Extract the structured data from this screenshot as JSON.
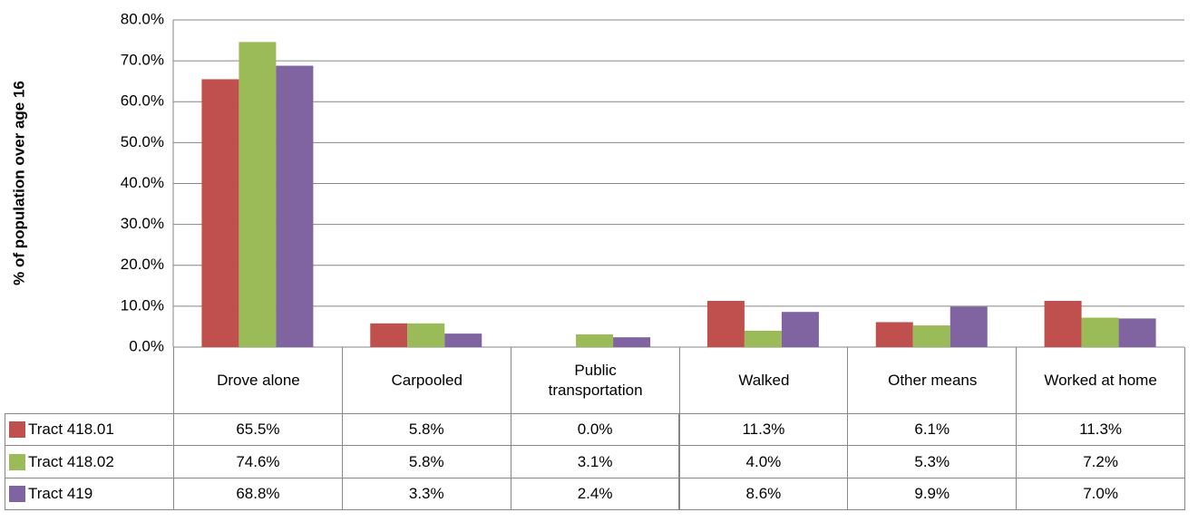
{
  "chart_data": {
    "type": "bar",
    "y_axis_label": "% of population  over age 16",
    "categories": [
      "Drove alone",
      "Carpooled",
      "Public transportation",
      "Walked",
      "Other means",
      "Worked at home"
    ],
    "series": [
      {
        "name": "Tract 418.01",
        "color": "#c0504d",
        "values": [
          65.5,
          5.8,
          0.0,
          11.3,
          6.1,
          11.3
        ],
        "value_labels": [
          "65.5%",
          "5.8%",
          "0.0%",
          "11.3%",
          "6.1%",
          "11.3%"
        ]
      },
      {
        "name": "Tract 418.02",
        "color": "#9bbb59",
        "values": [
          74.6,
          5.8,
          3.1,
          4.0,
          5.3,
          7.2
        ],
        "value_labels": [
          "74.6%",
          "5.8%",
          "3.1%",
          "4.0%",
          "5.3%",
          "7.2%"
        ]
      },
      {
        "name": "Tract 419",
        "color": "#8064a2",
        "values": [
          68.8,
          3.3,
          2.4,
          8.6,
          9.9,
          7.0
        ],
        "value_labels": [
          "68.8%",
          "3.3%",
          "2.4%",
          "8.6%",
          "9.9%",
          "7.0%"
        ]
      }
    ],
    "ylim": [
      0,
      80
    ],
    "yticks": [
      {
        "value": 0,
        "label": "0.0%"
      },
      {
        "value": 10,
        "label": "10.0%"
      },
      {
        "value": 20,
        "label": "20.0%"
      },
      {
        "value": 30,
        "label": "30.0%"
      },
      {
        "value": 40,
        "label": "40.0%"
      },
      {
        "value": 50,
        "label": "50.0%"
      },
      {
        "value": 60,
        "label": "60.0%"
      },
      {
        "value": 70,
        "label": "70.0%"
      },
      {
        "value": 80,
        "label": "80.0%"
      }
    ],
    "grid": true
  }
}
